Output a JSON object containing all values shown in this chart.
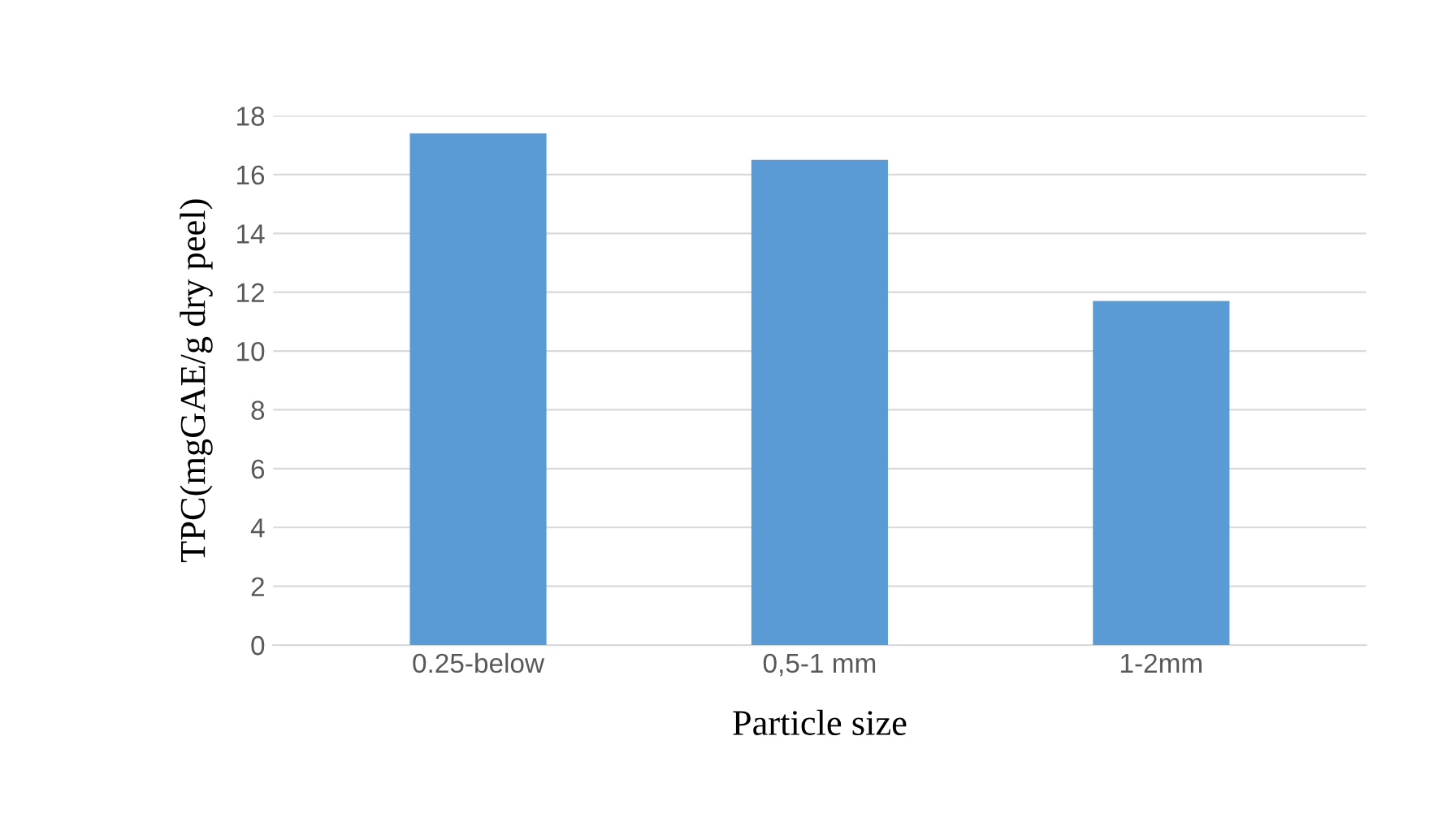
{
  "chart_data": {
    "type": "bar",
    "xlabel": "Particle size",
    "ylabel": "TPC(mgGAE/g dry peel)",
    "categories": [
      "0.25-below",
      "0,5-1 mm",
      "1-2mm"
    ],
    "values": [
      17.4,
      16.5,
      11.7
    ],
    "color": "#5b9bd5",
    "ylim": [
      0,
      18
    ],
    "yticks": [
      0,
      2,
      4,
      6,
      8,
      10,
      12,
      14,
      16,
      18
    ],
    "grid": "y"
  }
}
